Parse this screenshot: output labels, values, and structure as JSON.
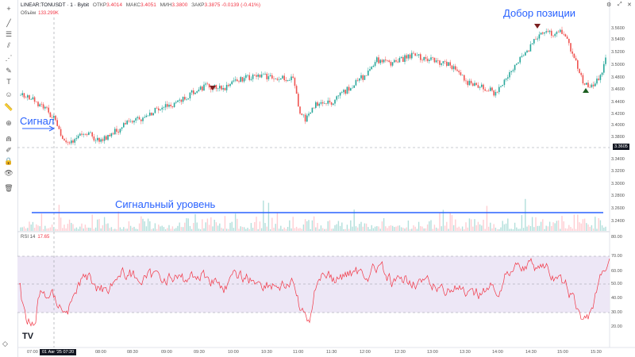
{
  "header": {
    "symbol": "LINEAR:TONUSDT · 1 · Bybit",
    "open_label": "ОТКР",
    "open": "3.4014",
    "high_label": "МАКС",
    "high": "3.4051",
    "low_label": "МИН",
    "low": "3.3800",
    "close_label": "ЗАКР",
    "close": "3.3875",
    "change": "-0.0139 (-0.41%)"
  },
  "volume": {
    "label": "Объём",
    "value": "133.299K"
  },
  "rsi": {
    "label": "RSI 14",
    "value": "17.65"
  },
  "annotations": {
    "signal": "Сигнал",
    "signal_level": "Сигнальный уровень",
    "add_position": "Добор позиции"
  },
  "price_axis": [
    "3.5600",
    "3.5400",
    "3.5200",
    "3.5000",
    "3.4800",
    "3.4600",
    "3.4400",
    "3.4200",
    "3.4000",
    "3.3800",
    "3.3400",
    "3.3200",
    "3.3000",
    "3.2800",
    "3.2600",
    "3.2400"
  ],
  "current_price": "3.3605",
  "rsi_axis": [
    "80.00",
    "70.00",
    "60.00",
    "50.00",
    "40.00",
    "30.00",
    "20.00"
  ],
  "time_axis": [
    "07:00",
    "08:00",
    "08:30",
    "09:00",
    "09:30",
    "10:00",
    "10:30",
    "11:00",
    "11:30",
    "12:00",
    "12:30",
    "13:00",
    "13:30",
    "14:00",
    "14:30",
    "15:00",
    "15:30"
  ],
  "crosshair_time": "01 Авг '25   07:20",
  "logo": "TV",
  "colors": {
    "up": "#26a69a",
    "down": "#ef5350",
    "annotation": "#2962ff",
    "rsi": "#f23645",
    "rsi_band": "#ede7f6"
  },
  "toolbar_icons": [
    "crosshair-icon",
    "trendline-icon",
    "fib-icon",
    "channel-icon",
    "pattern-icon",
    "brush-icon",
    "text-icon",
    "emoji-icon",
    "ruler-icon",
    "zoom-icon",
    "magnet-icon",
    "lock-draw-icon",
    "lock-icon",
    "eye-icon",
    "trash-icon"
  ]
}
